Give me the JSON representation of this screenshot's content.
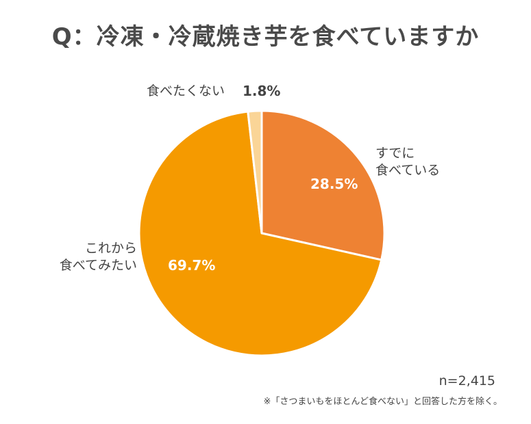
{
  "chart_data": {
    "type": "pie",
    "title": "Q：冷凍・冷蔵焼き芋を食べていますか",
    "slices": [
      {
        "label_lines": [
          "すでに",
          "食べている"
        ],
        "value": 28.5,
        "value_label": "28.5%",
        "color": "#ee8233"
      },
      {
        "label_lines": [
          "これから",
          "食べてみたい"
        ],
        "value": 69.7,
        "value_label": "69.7%",
        "color": "#f59a00"
      },
      {
        "label_lines": [
          "食べたくない"
        ],
        "value": 1.8,
        "value_label": "1.8%",
        "color": "#fad597"
      }
    ],
    "sample_size": "n=2,415",
    "note": "※「さつまいもをほとんど食べない」と回答した方を除く。"
  }
}
